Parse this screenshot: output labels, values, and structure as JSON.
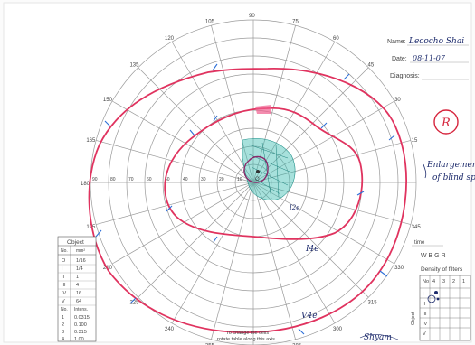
{
  "header": {
    "name_label": "Name:",
    "name_value": "Lecocho Shai",
    "date_label": "Date:",
    "date_value": "08-11-07",
    "diagnosis_label": "Diagnosis:"
  },
  "eye_marker": "R",
  "note": {
    "line1": "Enlargement",
    "line2": "of blind spot"
  },
  "perimeter": {
    "meridian_labels": [
      "15",
      "30",
      "45",
      "60",
      "75",
      "90",
      "105",
      "120",
      "135",
      "150",
      "165",
      "180",
      "195",
      "210",
      "225",
      "240",
      "255",
      "270",
      "285",
      "300",
      "315",
      "330",
      "345"
    ],
    "radial_labels": [
      "90",
      "80",
      "70",
      "60",
      "50",
      "40",
      "30",
      "20",
      "10"
    ],
    "isopter_labels": [
      "V4e",
      "I4e",
      "I2e"
    ],
    "center_label": "O"
  },
  "object_table": {
    "title": "Object",
    "header": [
      "No.",
      "mm²"
    ],
    "rows": [
      [
        "O",
        "1/16"
      ],
      [
        "I",
        "1/4"
      ],
      [
        "II",
        "1"
      ],
      [
        "III",
        "4"
      ],
      [
        "IV",
        "16"
      ],
      [
        "V",
        "64"
      ]
    ],
    "sub_header": [
      "No.",
      "Intens."
    ],
    "sub_rows": [
      [
        "1",
        "0.0315"
      ],
      [
        "2",
        "0.100"
      ],
      [
        "3",
        "0.315"
      ],
      [
        "4",
        "1.00"
      ]
    ]
  },
  "filters_table": {
    "title": "Density of filters",
    "header": [
      "No",
      "4",
      "3",
      "2",
      "1"
    ],
    "row_labels": [
      "I",
      "II",
      "III",
      "IV",
      "V"
    ],
    "side_label": "Object"
  },
  "instruction": {
    "line1": "To change the cells",
    "line2": "rotate table along this axis"
  },
  "corner_labels": {
    "wbgr": "W  B  G  R",
    "time": "time"
  },
  "signature": "Shyam"
}
